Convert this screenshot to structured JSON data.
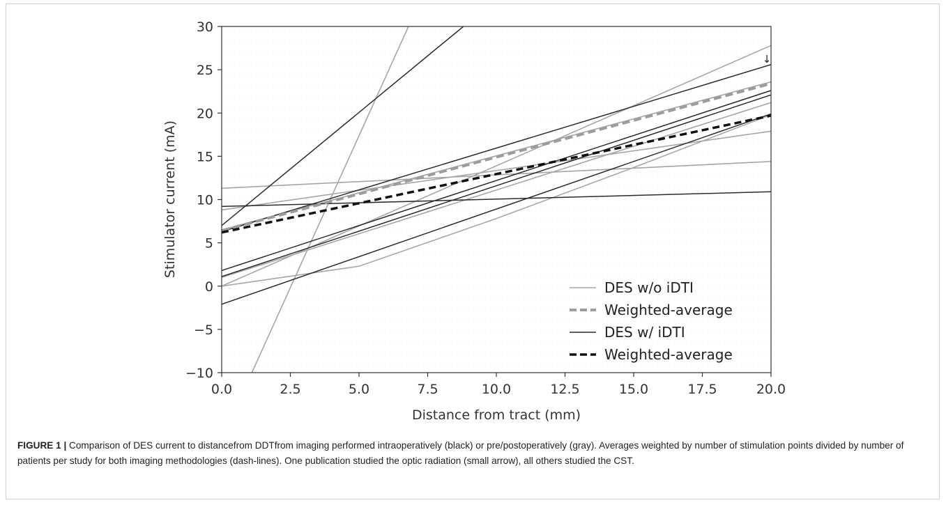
{
  "chart_data": {
    "type": "line",
    "xlabel": "Distance from tract (mm)",
    "ylabel": "Stimulator current (mA)",
    "xlim": [
      0,
      20
    ],
    "ylim": [
      -10,
      30
    ],
    "x_ticks": [
      "0.0",
      "2.5",
      "5.0",
      "7.5",
      "10.0",
      "12.5",
      "15.0",
      "17.5",
      "20.0"
    ],
    "y_ticks": [
      "−10",
      "−5",
      "0",
      "5",
      "10",
      "15",
      "20",
      "25",
      "30"
    ],
    "grid": false,
    "legend_position": "lower-right",
    "legend": [
      {
        "label": "DES w/o iDTI",
        "style": "gray-solid"
      },
      {
        "label": "Weighted-average",
        "style": "gray-dashed"
      },
      {
        "label": "DES w/ iDTI",
        "style": "black-solid"
      },
      {
        "label": "Weighted-average",
        "style": "black-dashed"
      }
    ],
    "annotation": "↓",
    "gray_lines": [
      {
        "x": [
          0,
          20
        ],
        "y": [
          11.3,
          14.4
        ]
      },
      {
        "x": [
          0,
          20
        ],
        "y": [
          8.8,
          17.9
        ]
      },
      {
        "x": [
          1.1,
          6.8
        ],
        "y": [
          -10,
          30
        ]
      },
      {
        "x": [
          0,
          20
        ],
        "y": [
          0,
          27.8
        ]
      },
      {
        "x": [
          0,
          20
        ],
        "y": [
          1.0,
          21.2
        ]
      },
      {
        "x": [
          0,
          5,
          10,
          15,
          20
        ],
        "y": [
          0,
          2.3,
          7.8,
          13.7,
          19.8
        ]
      },
      {
        "x": [
          0,
          20
        ],
        "y": [
          6.5,
          23.6
        ]
      }
    ],
    "black_lines": [
      {
        "x": [
          0,
          8.8
        ],
        "y": [
          7.0,
          30
        ]
      },
      {
        "x": [
          0,
          20
        ],
        "y": [
          9.2,
          10.9
        ]
      },
      {
        "x": [
          0,
          20
        ],
        "y": [
          6.3,
          25.6
        ]
      },
      {
        "x": [
          0,
          20
        ],
        "y": [
          1.8,
          22.6
        ]
      },
      {
        "x": [
          0,
          20
        ],
        "y": [
          1.1,
          22.1
        ]
      },
      {
        "x": [
          0,
          20
        ],
        "y": [
          -2.1,
          19.9
        ]
      }
    ],
    "weighted_average_gray": {
      "x": [
        0,
        20
      ],
      "y": [
        6.4,
        23.4
      ]
    },
    "weighted_average_black": {
      "x": [
        0,
        20
      ],
      "y": [
        6.2,
        19.7
      ]
    },
    "colors": {
      "gray": "#a6a6a6",
      "black": "#2b2b2b",
      "gray_dash": "#9c9c9c",
      "black_dash": "#111111"
    }
  },
  "caption": {
    "label": "FIGURE 1 |",
    "text": " Comparison of DES current to distancefrom DDTfrom imaging performed intraoperatively (black) or pre/postoperatively (gray). Averages weighted by number of stimulation points divided by number of patients per study for both imaging methodologies (dash-lines). One publication studied the optic radiation (small arrow), all others studied the CST."
  }
}
